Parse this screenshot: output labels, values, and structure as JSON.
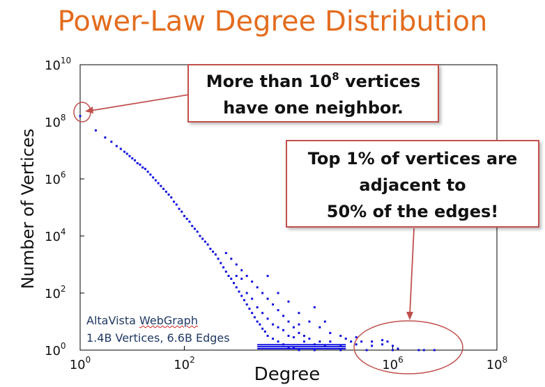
{
  "slide": {
    "title": "Power-Law Degree Distribution",
    "colors": {
      "title": "#e36c1e",
      "points": "#1010e0",
      "callout_border": "#c0504d",
      "source_text": "#1f3864"
    }
  },
  "callouts": {
    "one_neighbor": {
      "pre": "More than 10",
      "sup": "8",
      "post": " vertices",
      "line2": "have one neighbor."
    },
    "top_vertices": {
      "line1": "Top 1% of vertices are",
      "line2": "adjacent to",
      "line3": "50% of the edges!"
    }
  },
  "source": {
    "name": "AltaVista ",
    "name_underlined": "WebGraph",
    "stats": "1.4B Vertices, 6.6B Edges"
  },
  "chart_data": {
    "type": "scatter",
    "title": "Power-Law Degree Distribution",
    "xlabel": "Degree",
    "ylabel": "Number of Vertices",
    "xscale": "log",
    "yscale": "log",
    "xlim_exp": [
      0,
      8
    ],
    "ylim_exp": [
      0,
      10
    ],
    "x_ticks": [
      {
        "exp": 0,
        "base": "10",
        "sup": "0"
      },
      {
        "exp": 2,
        "base": "10",
        "sup": "2"
      },
      {
        "exp": 6,
        "base": "10",
        "sup": "6"
      },
      {
        "exp": 8,
        "base": "10",
        "sup": "8"
      }
    ],
    "y_ticks": [
      {
        "exp": 0,
        "base": "10",
        "sup": "0"
      },
      {
        "exp": 2,
        "base": "10",
        "sup": "2"
      },
      {
        "exp": 4,
        "base": "10",
        "sup": "4"
      },
      {
        "exp": 6,
        "base": "10",
        "sup": "6"
      },
      {
        "exp": 8,
        "base": "10",
        "sup": "8"
      },
      {
        "exp": 10,
        "base": "10",
        "sup": "10"
      }
    ],
    "grid": false,
    "series": [
      {
        "name": "degree distribution",
        "note": "points as [log10(degree), log10(vertex count)]",
        "points": [
          [
            0.0,
            8.2
          ],
          [
            0.3,
            7.7
          ],
          [
            0.48,
            7.45
          ],
          [
            0.6,
            7.3
          ],
          [
            0.7,
            7.15
          ],
          [
            0.78,
            7.05
          ],
          [
            0.85,
            6.95
          ],
          [
            0.9,
            6.88
          ],
          [
            0.95,
            6.8
          ],
          [
            1.0,
            6.72
          ],
          [
            1.05,
            6.65
          ],
          [
            1.1,
            6.55
          ],
          [
            1.15,
            6.5
          ],
          [
            1.2,
            6.4
          ],
          [
            1.25,
            6.35
          ],
          [
            1.3,
            6.25
          ],
          [
            1.35,
            6.15
          ],
          [
            1.4,
            6.05
          ],
          [
            1.45,
            5.95
          ],
          [
            1.5,
            5.85
          ],
          [
            1.55,
            5.75
          ],
          [
            1.6,
            5.65
          ],
          [
            1.65,
            5.55
          ],
          [
            1.7,
            5.45
          ],
          [
            1.75,
            5.35
          ],
          [
            1.8,
            5.2
          ],
          [
            1.85,
            5.1
          ],
          [
            1.9,
            4.95
          ],
          [
            1.95,
            4.85
          ],
          [
            2.0,
            4.7
          ],
          [
            2.05,
            4.6
          ],
          [
            2.1,
            4.5
          ],
          [
            2.15,
            4.35
          ],
          [
            2.2,
            4.25
          ],
          [
            2.25,
            4.15
          ],
          [
            2.3,
            4.0
          ],
          [
            2.35,
            3.9
          ],
          [
            2.4,
            3.8
          ],
          [
            2.45,
            3.7
          ],
          [
            2.5,
            3.55
          ],
          [
            2.55,
            3.45
          ],
          [
            2.6,
            3.35
          ],
          [
            2.65,
            3.2
          ],
          [
            2.7,
            3.05
          ],
          [
            2.75,
            2.9
          ],
          [
            2.8,
            2.75
          ],
          [
            2.85,
            2.6
          ],
          [
            2.9,
            2.5
          ],
          [
            2.95,
            2.35
          ],
          [
            3.0,
            2.2
          ],
          [
            3.05,
            2.05
          ],
          [
            3.1,
            1.9
          ],
          [
            3.15,
            1.75
          ],
          [
            3.2,
            1.6
          ],
          [
            3.25,
            1.45
          ],
          [
            3.3,
            1.3
          ],
          [
            3.35,
            1.15
          ],
          [
            3.4,
            1.0
          ],
          [
            3.45,
            0.9
          ],
          [
            3.5,
            0.75
          ],
          [
            3.55,
            0.65
          ],
          [
            3.6,
            0.5
          ],
          [
            3.7,
            0.4
          ],
          [
            3.8,
            0.3
          ],
          [
            3.9,
            0.2
          ],
          [
            4.0,
            0.1
          ],
          [
            4.1,
            0.1
          ],
          [
            4.2,
            0.0
          ],
          [
            4.5,
            0.0
          ],
          [
            5.0,
            0.0
          ],
          [
            5.5,
            0.0
          ],
          [
            6.0,
            0.0
          ],
          [
            6.5,
            0.0
          ],
          [
            2.8,
            3.4
          ],
          [
            2.9,
            3.2
          ],
          [
            3.0,
            3.0
          ],
          [
            3.1,
            2.8
          ],
          [
            3.2,
            2.6
          ],
          [
            3.3,
            2.4
          ],
          [
            3.4,
            2.2
          ],
          [
            3.5,
            2.0
          ],
          [
            3.6,
            1.8
          ],
          [
            3.7,
            1.6
          ],
          [
            3.8,
            1.4
          ],
          [
            3.9,
            1.2
          ],
          [
            4.0,
            1.0
          ],
          [
            4.1,
            0.8
          ],
          [
            4.2,
            0.6
          ],
          [
            4.3,
            0.5
          ],
          [
            3.2,
            2.0
          ],
          [
            3.3,
            1.8
          ],
          [
            3.4,
            1.5
          ],
          [
            3.5,
            1.3
          ],
          [
            3.6,
            1.1
          ],
          [
            3.7,
            0.9
          ],
          [
            3.8,
            0.8
          ],
          [
            3.9,
            0.7
          ],
          [
            4.0,
            0.5
          ],
          [
            4.1,
            0.45
          ],
          [
            4.3,
            0.3
          ],
          [
            4.4,
            0.4
          ],
          [
            4.5,
            0.2
          ],
          [
            4.6,
            0.3
          ],
          [
            4.7,
            0.15
          ],
          [
            4.8,
            0.3
          ],
          [
            5.0,
            0.15
          ],
          [
            5.2,
            0.3
          ],
          [
            5.3,
            0.2
          ],
          [
            5.4,
            0.3
          ],
          [
            5.6,
            0.15
          ],
          [
            5.8,
            0.2
          ],
          [
            5.9,
            0.3
          ],
          [
            6.0,
            0.15
          ],
          [
            3.6,
            2.6
          ],
          [
            3.8,
            2.0
          ],
          [
            4.0,
            1.7
          ],
          [
            4.2,
            1.3
          ],
          [
            4.4,
            1.0
          ],
          [
            4.6,
            0.8
          ],
          [
            4.8,
            0.6
          ],
          [
            5.0,
            0.5
          ],
          [
            5.1,
            0.4
          ],
          [
            5.3,
            0.45
          ],
          [
            5.6,
            0.3
          ],
          [
            5.8,
            0.35
          ],
          [
            6.1,
            0.05
          ],
          [
            6.6,
            0.0
          ],
          [
            6.8,
            0.0
          ],
          [
            4.5,
            1.5
          ],
          [
            4.7,
            1.0
          ],
          [
            3.1,
            2.5
          ],
          [
            3.0,
            2.6
          ],
          [
            4.2,
            0.9
          ]
        ]
      }
    ],
    "annotations": [
      {
        "text": "More than 10^8 vertices have one neighbor.",
        "target": [
          0,
          8.2
        ]
      },
      {
        "text": "Top 1% of vertices are adjacent to 50% of the edges!",
        "target": [
          6,
          0
        ]
      }
    ]
  }
}
